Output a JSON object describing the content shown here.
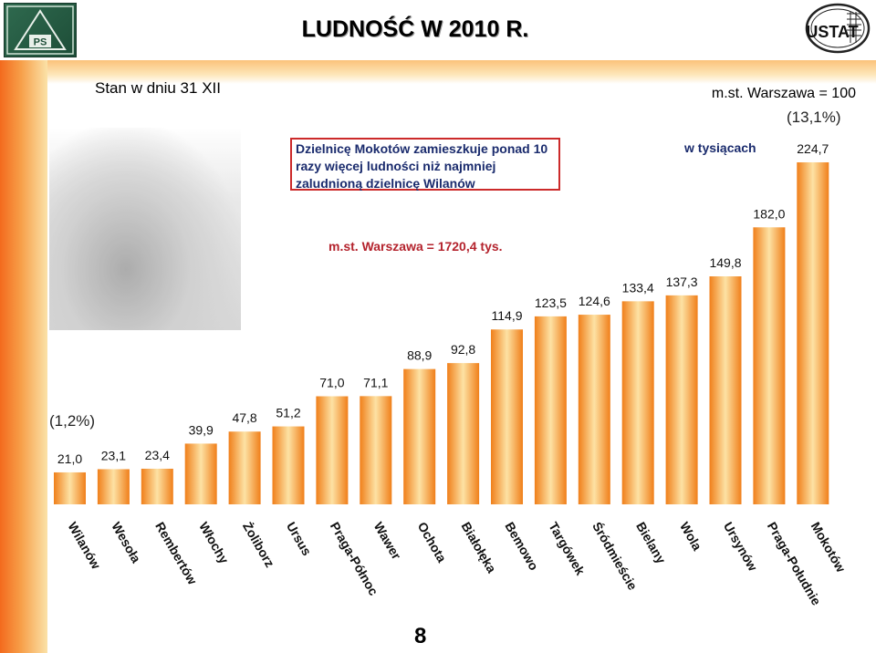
{
  "title": "LUDNOŚĆ W 2010 R.",
  "subtitle": "Stan w dniu 31 XII",
  "reference": "m.st. Warszawa = 100",
  "note": "Dzielnicę Mokotów zamieszkuje ponad 10 razy więcej ludności niż najmniej zaludnioną dzielnicę Wilanów",
  "unit": "w tysiącach",
  "total": "m.st. Warszawa = 1720,4 tys.",
  "share_max": "(13,1%)",
  "share_min": "(1,2%)",
  "page_number": "8",
  "logo_left_text": "PS",
  "logo_right_text": "USTAT",
  "colors": {
    "bar": "#f39a2c",
    "bar_highlight": "#fde2a4",
    "stripe": "#f36a1d"
  },
  "chart_data": {
    "type": "bar",
    "categories": [
      "Wilanów",
      "Wesoła",
      "Rembertów",
      "Włochy",
      "Żoliborz",
      "Ursus",
      "Praga-Północ",
      "Wawer",
      "Ochota",
      "Białołęka",
      "Bemowo",
      "Targówek",
      "Śródmieście",
      "Bielany",
      "Wola",
      "Ursynów",
      "Praga-Południe",
      "Mokotów"
    ],
    "values": [
      21.0,
      23.1,
      23.4,
      39.9,
      47.8,
      51.2,
      71.0,
      71.1,
      88.9,
      92.8,
      114.9,
      123.5,
      124.6,
      133.4,
      137.3,
      149.8,
      182.0,
      224.7
    ],
    "value_labels": [
      "21,0",
      "23,1",
      "23,4",
      "39,9",
      "47,8",
      "51,2",
      "71,0",
      "71,1",
      "88,9",
      "92,8",
      "114,9",
      "123,5",
      "124,6",
      "133,4",
      "137,3",
      "149,8",
      "182,0",
      "224,7"
    ],
    "ylim": [
      0,
      224.7
    ],
    "grid": false,
    "legend": "none"
  }
}
